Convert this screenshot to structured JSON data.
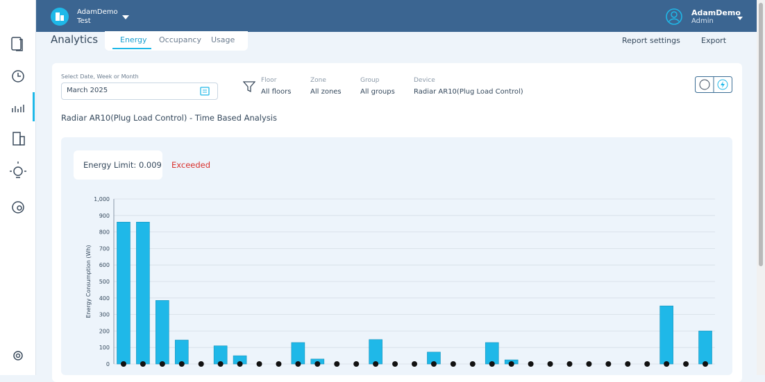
{
  "header": {
    "org_name": "AdamDemo",
    "site": "Test",
    "user_name": "AdamDemo",
    "role": "Admin"
  },
  "page": {
    "title": "Analytics",
    "tabs": [
      "Energy",
      "Occupancy",
      "Usage"
    ],
    "report_settings": "Report settings",
    "export": "Export"
  },
  "filters": {
    "date_label": "Select Date, Week or Month",
    "date_value": "March 2025",
    "floor": {
      "label": "Floor",
      "value": "All floors"
    },
    "zone": {
      "label": "Zone",
      "value": "All zones"
    },
    "group": {
      "label": "Group",
      "value": "All groups"
    },
    "device": {
      "label": "Device",
      "value": "Radiar AR10(Plug Load Control)"
    }
  },
  "chart_data": {
    "type": "bar",
    "title": "Radiar AR10(Plug Load Control) - Time Based Analysis",
    "energy_limit_label": "Energy Limit: 0.009",
    "energy_limit": 0.009,
    "status": "Exceeded",
    "y_label": "Energy Consumption (Wh)",
    "values": [
      860,
      860,
      385,
      145,
      0,
      110,
      50,
      0,
      0,
      130,
      30,
      0,
      0,
      148,
      0,
      0,
      72,
      0,
      0,
      130,
      25,
      0,
      0,
      0,
      0,
      0,
      0,
      0,
      352,
      0,
      200
    ],
    "color": "#1fb8e8",
    "ylim": [
      0,
      1000
    ],
    "yticks": [
      0,
      100,
      200,
      300,
      400,
      500,
      600,
      700,
      800,
      900,
      {
        "value": 1000,
        "label": "1,000"
      }
    ],
    "grid": true
  }
}
